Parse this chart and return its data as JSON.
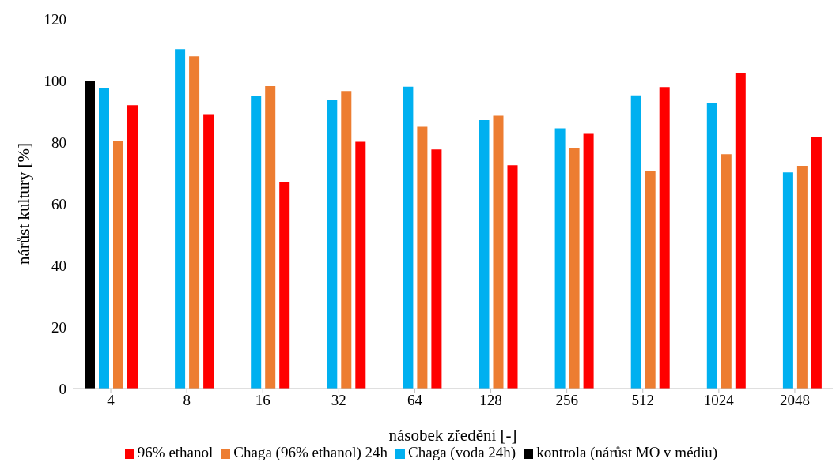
{
  "chart_data": {
    "type": "bar",
    "xlabel": "násobek zředění [-]",
    "ylabel": "nárůst kultury [%]",
    "categories": [
      "4",
      "8",
      "16",
      "32",
      "64",
      "128",
      "256",
      "512",
      "1024",
      "2048"
    ],
    "series": [
      {
        "name": "kontrola (nárůst MO v médiu)",
        "color": "#000000",
        "values": [
          100,
          null,
          null,
          null,
          null,
          null,
          null,
          null,
          null,
          null
        ]
      },
      {
        "name": "Chaga (voda 24h)",
        "color": "#00b0f0",
        "values": [
          97.5,
          110.2,
          94.9,
          93.7,
          98,
          87.2,
          84.5,
          95.2,
          92.6,
          70.2
        ]
      },
      {
        "name": "Chaga (96% ethanol) 24h",
        "color": "#ed7d31",
        "values": [
          80.4,
          107.9,
          98.2,
          96.6,
          85,
          88.6,
          78.2,
          70.5,
          76.1,
          72.3
        ]
      },
      {
        "name": "96% ethanol",
        "color": "#ff0000",
        "values": [
          92,
          89.1,
          67.1,
          80.1,
          77.6,
          72.5,
          82.7,
          97.9,
          102.3,
          81.6
        ]
      }
    ],
    "ylim": [
      0,
      120
    ],
    "yticks": [
      0,
      20,
      40,
      60,
      80,
      100,
      120
    ],
    "grid": false,
    "legend": "bottom"
  }
}
